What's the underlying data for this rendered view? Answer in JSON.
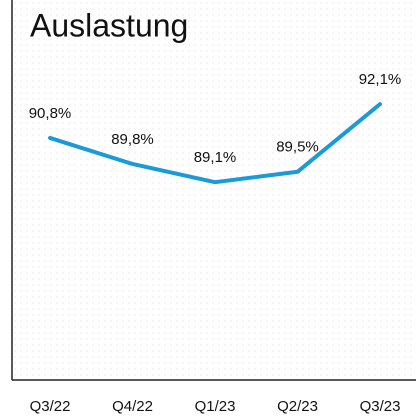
{
  "chart_data": {
    "type": "line",
    "title": "Auslastung",
    "categories": [
      "Q3/22",
      "Q4/22",
      "Q1/23",
      "Q2/23",
      "Q3/23"
    ],
    "values": [
      90.8,
      89.8,
      89.1,
      89.5,
      92.1
    ],
    "value_labels": [
      "90,8%",
      "89,8%",
      "89,1%",
      "89,5%",
      "92,1%"
    ],
    "color": "#1a9ad6",
    "ylim": [
      81.5,
      96.1
    ]
  }
}
